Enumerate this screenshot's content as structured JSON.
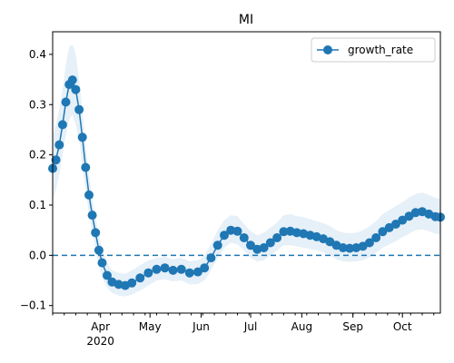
{
  "chart_data": {
    "type": "line",
    "title": "MI",
    "xlabel": "",
    "ylabel": "",
    "x_axis": {
      "type": "date",
      "range": [
        "2020-03-03",
        "2020-10-24"
      ],
      "ticks": [
        {
          "date": "2020-04-01",
          "label": "Apr",
          "sublabel": "2020"
        },
        {
          "date": "2020-05-01",
          "label": "May"
        },
        {
          "date": "2020-06-01",
          "label": "Jun"
        },
        {
          "date": "2020-07-01",
          "label": "Jul"
        },
        {
          "date": "2020-08-01",
          "label": "Aug"
        },
        {
          "date": "2020-09-01",
          "label": "Sep"
        },
        {
          "date": "2020-10-01",
          "label": "Oct"
        }
      ]
    },
    "ylim": [
      -0.115,
      0.445
    ],
    "yticks": [
      -0.1,
      0.0,
      0.1,
      0.2,
      0.3,
      0.4
    ],
    "ytick_labels": [
      "−0.1",
      "0.0",
      "0.1",
      "0.2",
      "0.3",
      "0.4"
    ],
    "reference_line": {
      "y": 0.0,
      "style": "dashed",
      "color": "#1f77b4"
    },
    "legend": {
      "placement": "top-right",
      "entries": [
        "growth_rate"
      ]
    },
    "grid": false,
    "series": [
      {
        "name": "growth_rate",
        "color": "#1f77b4",
        "marker": "circle",
        "band_color": "#d6e6f4",
        "points": [
          {
            "date": "2020-03-03",
            "y": 0.173,
            "lo": 0.11,
            "hi": 0.24
          },
          {
            "date": "2020-03-05",
            "y": 0.19,
            "lo": 0.13,
            "hi": 0.26
          },
          {
            "date": "2020-03-07",
            "y": 0.22,
            "lo": 0.16,
            "hi": 0.29
          },
          {
            "date": "2020-03-09",
            "y": 0.26,
            "lo": 0.2,
            "hi": 0.33
          },
          {
            "date": "2020-03-11",
            "y": 0.305,
            "lo": 0.24,
            "hi": 0.38
          },
          {
            "date": "2020-03-13",
            "y": 0.34,
            "lo": 0.27,
            "hi": 0.415
          },
          {
            "date": "2020-03-15",
            "y": 0.349,
            "lo": 0.28,
            "hi": 0.42
          },
          {
            "date": "2020-03-17",
            "y": 0.33,
            "lo": 0.26,
            "hi": 0.4
          },
          {
            "date": "2020-03-19",
            "y": 0.29,
            "lo": 0.23,
            "hi": 0.35
          },
          {
            "date": "2020-03-21",
            "y": 0.235,
            "lo": 0.18,
            "hi": 0.29
          },
          {
            "date": "2020-03-23",
            "y": 0.175,
            "lo": 0.13,
            "hi": 0.22
          },
          {
            "date": "2020-03-25",
            "y": 0.12,
            "lo": 0.08,
            "hi": 0.16
          },
          {
            "date": "2020-03-27",
            "y": 0.08,
            "lo": 0.045,
            "hi": 0.115
          },
          {
            "date": "2020-03-29",
            "y": 0.045,
            "lo": 0.015,
            "hi": 0.075
          },
          {
            "date": "2020-03-31",
            "y": 0.01,
            "lo": -0.02,
            "hi": 0.04
          },
          {
            "date": "2020-04-02",
            "y": -0.015,
            "lo": -0.045,
            "hi": 0.015
          },
          {
            "date": "2020-04-05",
            "y": -0.04,
            "lo": -0.065,
            "hi": -0.015
          },
          {
            "date": "2020-04-08",
            "y": -0.053,
            "lo": -0.075,
            "hi": -0.03
          },
          {
            "date": "2020-04-12",
            "y": -0.058,
            "lo": -0.08,
            "hi": -0.035
          },
          {
            "date": "2020-04-16",
            "y": -0.06,
            "lo": -0.082,
            "hi": -0.037
          },
          {
            "date": "2020-04-20",
            "y": -0.055,
            "lo": -0.078,
            "hi": -0.03
          },
          {
            "date": "2020-04-25",
            "y": -0.045,
            "lo": -0.07,
            "hi": -0.02
          },
          {
            "date": "2020-04-30",
            "y": -0.035,
            "lo": -0.06,
            "hi": -0.01
          },
          {
            "date": "2020-05-05",
            "y": -0.028,
            "lo": -0.05,
            "hi": -0.005
          },
          {
            "date": "2020-05-10",
            "y": -0.025,
            "lo": -0.048,
            "hi": -0.003
          },
          {
            "date": "2020-05-15",
            "y": -0.03,
            "lo": -0.052,
            "hi": -0.008
          },
          {
            "date": "2020-05-20",
            "y": -0.028,
            "lo": -0.05,
            "hi": -0.005
          },
          {
            "date": "2020-05-25",
            "y": -0.035,
            "lo": -0.058,
            "hi": -0.012
          },
          {
            "date": "2020-05-30",
            "y": -0.033,
            "lo": -0.057,
            "hi": -0.01
          },
          {
            "date": "2020-06-03",
            "y": -0.025,
            "lo": -0.05,
            "hi": 0.0
          },
          {
            "date": "2020-06-07",
            "y": -0.005,
            "lo": -0.03,
            "hi": 0.022
          },
          {
            "date": "2020-06-11",
            "y": 0.02,
            "lo": -0.005,
            "hi": 0.05
          },
          {
            "date": "2020-06-15",
            "y": 0.04,
            "lo": 0.015,
            "hi": 0.07
          },
          {
            "date": "2020-06-19",
            "y": 0.05,
            "lo": 0.025,
            "hi": 0.08
          },
          {
            "date": "2020-06-23",
            "y": 0.048,
            "lo": 0.022,
            "hi": 0.078
          },
          {
            "date": "2020-06-27",
            "y": 0.035,
            "lo": 0.01,
            "hi": 0.062
          },
          {
            "date": "2020-07-01",
            "y": 0.02,
            "lo": -0.005,
            "hi": 0.048
          },
          {
            "date": "2020-07-05",
            "y": 0.012,
            "lo": -0.012,
            "hi": 0.04
          },
          {
            "date": "2020-07-09",
            "y": 0.015,
            "lo": -0.01,
            "hi": 0.045
          },
          {
            "date": "2020-07-13",
            "y": 0.025,
            "lo": 0.0,
            "hi": 0.055
          },
          {
            "date": "2020-07-17",
            "y": 0.035,
            "lo": 0.01,
            "hi": 0.065
          },
          {
            "date": "2020-07-21",
            "y": 0.047,
            "lo": 0.02,
            "hi": 0.08
          },
          {
            "date": "2020-07-25",
            "y": 0.048,
            "lo": 0.02,
            "hi": 0.082
          },
          {
            "date": "2020-07-29",
            "y": 0.045,
            "lo": 0.018,
            "hi": 0.078
          },
          {
            "date": "2020-08-02",
            "y": 0.043,
            "lo": 0.015,
            "hi": 0.076
          },
          {
            "date": "2020-08-06",
            "y": 0.04,
            "lo": 0.012,
            "hi": 0.072
          },
          {
            "date": "2020-08-10",
            "y": 0.037,
            "lo": 0.01,
            "hi": 0.068
          },
          {
            "date": "2020-08-14",
            "y": 0.033,
            "lo": 0.006,
            "hi": 0.064
          },
          {
            "date": "2020-08-18",
            "y": 0.027,
            "lo": 0.0,
            "hi": 0.058
          },
          {
            "date": "2020-08-22",
            "y": 0.02,
            "lo": -0.008,
            "hi": 0.05
          },
          {
            "date": "2020-08-26",
            "y": 0.015,
            "lo": -0.012,
            "hi": 0.045
          },
          {
            "date": "2020-08-30",
            "y": 0.014,
            "lo": -0.013,
            "hi": 0.044
          },
          {
            "date": "2020-09-03",
            "y": 0.015,
            "lo": -0.012,
            "hi": 0.045
          },
          {
            "date": "2020-09-07",
            "y": 0.018,
            "lo": -0.01,
            "hi": 0.05
          },
          {
            "date": "2020-09-11",
            "y": 0.025,
            "lo": -0.004,
            "hi": 0.058
          },
          {
            "date": "2020-09-15",
            "y": 0.035,
            "lo": 0.005,
            "hi": 0.068
          },
          {
            "date": "2020-09-19",
            "y": 0.047,
            "lo": 0.015,
            "hi": 0.082
          },
          {
            "date": "2020-09-23",
            "y": 0.055,
            "lo": 0.022,
            "hi": 0.09
          },
          {
            "date": "2020-09-27",
            "y": 0.062,
            "lo": 0.028,
            "hi": 0.098
          },
          {
            "date": "2020-10-01",
            "y": 0.07,
            "lo": 0.036,
            "hi": 0.106
          },
          {
            "date": "2020-10-05",
            "y": 0.078,
            "lo": 0.043,
            "hi": 0.115
          },
          {
            "date": "2020-10-09",
            "y": 0.085,
            "lo": 0.05,
            "hi": 0.122
          },
          {
            "date": "2020-10-13",
            "y": 0.087,
            "lo": 0.052,
            "hi": 0.125
          },
          {
            "date": "2020-10-17",
            "y": 0.082,
            "lo": 0.048,
            "hi": 0.12
          },
          {
            "date": "2020-10-21",
            "y": 0.077,
            "lo": 0.043,
            "hi": 0.115
          },
          {
            "date": "2020-10-24",
            "y": 0.076,
            "lo": 0.042,
            "hi": 0.112
          }
        ]
      }
    ]
  }
}
